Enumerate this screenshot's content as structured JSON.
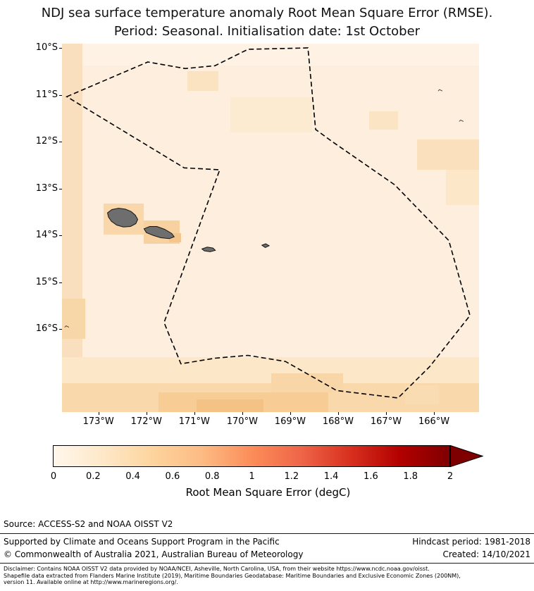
{
  "title": {
    "line1": "NDJ sea surface temperature anomaly Root Mean Square Error (RMSE).",
    "line2": "Period: Seasonal. Initialisation date: 1st October"
  },
  "chart_data": {
    "type": "heatmap",
    "title": "NDJ sea surface temperature anomaly Root Mean Square Error (RMSE). Period: Seasonal. Initialisation date: 1st October",
    "map": {
      "lon_range": [
        -173.76,
        -165.06
      ],
      "lat_range": [
        -9.91,
        -17.77
      ],
      "x_ticks": [
        {
          "lon": -173,
          "label": "173°W"
        },
        {
          "lon": -172,
          "label": "172°W"
        },
        {
          "lon": -171,
          "label": "171°W"
        },
        {
          "lon": -170,
          "label": "170°W"
        },
        {
          "lon": -169,
          "label": "169°W"
        },
        {
          "lon": -168,
          "label": "168°W"
        },
        {
          "lon": -167,
          "label": "167°W"
        },
        {
          "lon": -166,
          "label": "166°W"
        }
      ],
      "y_ticks": [
        {
          "lat": -10,
          "label": "10°S"
        },
        {
          "lat": -11,
          "label": "11°S"
        },
        {
          "lat": -12,
          "label": "12°S"
        },
        {
          "lat": -13,
          "label": "13°S"
        },
        {
          "lat": -14,
          "label": "14°S"
        },
        {
          "lat": -15,
          "label": "15°S"
        },
        {
          "lat": -16,
          "label": "16°S"
        }
      ],
      "base_value": 0.15,
      "base_color": "#fdeedd",
      "cells": [
        {
          "lon": [
            -173.76,
            -173.33
          ],
          "lat": [
            -9.91,
            -17.77
          ],
          "value": 0.3,
          "color": "#f9dfbd"
        },
        {
          "lon": [
            -173.33,
            -165.06
          ],
          "lat": [
            -9.91,
            -10.38
          ],
          "value": 0.1,
          "color": "#fdf2e3"
        },
        {
          "lon": [
            -171.15,
            -170.5
          ],
          "lat": [
            -10.5,
            -10.92
          ],
          "value": 0.3,
          "color": "#fbe2c0"
        },
        {
          "lon": [
            -170.25,
            -168.55
          ],
          "lat": [
            -11.05,
            -11.8
          ],
          "value": 0.2,
          "color": "#fcebd1"
        },
        {
          "lon": [
            -167.35,
            -166.75
          ],
          "lat": [
            -11.35,
            -11.75
          ],
          "value": 0.28,
          "color": "#fbe4c4"
        },
        {
          "lon": [
            -166.35,
            -165.06
          ],
          "lat": [
            -11.95,
            -12.6
          ],
          "value": 0.32,
          "color": "#fae0bd"
        },
        {
          "lon": [
            -165.75,
            -165.06
          ],
          "lat": [
            -12.6,
            -13.35
          ],
          "value": 0.22,
          "color": "#fce7c9"
        },
        {
          "lon": [
            -172.9,
            -172.05
          ],
          "lat": [
            -13.32,
            -13.98
          ],
          "value": 0.45,
          "color": "#f9d7aa"
        },
        {
          "lon": [
            -172.05,
            -171.3
          ],
          "lat": [
            -13.68,
            -14.18
          ],
          "value": 0.5,
          "color": "#f8d1a0"
        },
        {
          "lon": [
            -171.52,
            -171.28
          ],
          "lat": [
            -13.95,
            -14.15
          ],
          "value": 0.62,
          "color": "#f5c68b"
        },
        {
          "lon": [
            -173.76,
            -173.28
          ],
          "lat": [
            -15.35,
            -16.2
          ],
          "value": 0.47,
          "color": "#f7d6a8"
        },
        {
          "lon": [
            -173.76,
            -165.06
          ],
          "lat": [
            -16.6,
            -17.15
          ],
          "value": 0.22,
          "color": "#fce7c9"
        },
        {
          "lon": [
            -173.76,
            -165.06
          ],
          "lat": [
            -17.15,
            -17.77
          ],
          "value": 0.45,
          "color": "#f9d8ab"
        },
        {
          "lon": [
            -171.75,
            -168.2
          ],
          "lat": [
            -17.35,
            -17.77
          ],
          "value": 0.55,
          "color": "#f7cc95"
        },
        {
          "lon": [
            -170.95,
            -169.55
          ],
          "lat": [
            -17.5,
            -17.77
          ],
          "value": 0.62,
          "color": "#f5c285"
        },
        {
          "lon": [
            -169.4,
            -167.9
          ],
          "lat": [
            -16.95,
            -17.35
          ],
          "value": 0.46,
          "color": "#f9d6a8"
        },
        {
          "lon": [
            -166.6,
            -165.9
          ],
          "lat": [
            -17.2,
            -17.6
          ],
          "value": 0.4,
          "color": "#fadcb3"
        }
      ],
      "eez_boundary": [
        [
          -173.66,
          -11.04
        ],
        [
          -171.97,
          -10.3
        ],
        [
          -171.19,
          -10.44
        ],
        [
          -170.57,
          -10.38
        ],
        [
          -169.88,
          -10.03
        ],
        [
          -168.63,
          -10.0
        ],
        [
          -168.47,
          -11.74
        ],
        [
          -168.15,
          -11.98
        ],
        [
          -166.82,
          -12.92
        ],
        [
          -165.69,
          -14.11
        ],
        [
          -165.25,
          -15.71
        ],
        [
          -166.09,
          -16.8
        ],
        [
          -166.75,
          -17.47
        ],
        [
          -168.03,
          -17.31
        ],
        [
          -169.1,
          -16.69
        ],
        [
          -169.88,
          -16.56
        ],
        [
          -170.57,
          -16.62
        ],
        [
          -171.28,
          -16.74
        ],
        [
          -171.63,
          -15.86
        ],
        [
          -170.47,
          -12.6
        ],
        [
          -171.21,
          -12.56
        ]
      ],
      "islands": [
        {
          "name": "savaii",
          "points": [
            [
              -172.81,
              -13.52
            ],
            [
              -172.72,
              -13.45
            ],
            [
              -172.58,
              -13.42
            ],
            [
              -172.44,
              -13.44
            ],
            [
              -172.32,
              -13.49
            ],
            [
              -172.23,
              -13.57
            ],
            [
              -172.18,
              -13.66
            ],
            [
              -172.22,
              -13.75
            ],
            [
              -172.33,
              -13.81
            ],
            [
              -172.48,
              -13.82
            ],
            [
              -172.62,
              -13.78
            ],
            [
              -172.73,
              -13.7
            ],
            [
              -172.79,
              -13.61
            ]
          ]
        },
        {
          "name": "upolu",
          "points": [
            [
              -172.05,
              -13.86
            ],
            [
              -171.93,
              -13.81
            ],
            [
              -171.78,
              -13.81
            ],
            [
              -171.62,
              -13.87
            ],
            [
              -171.47,
              -13.96
            ],
            [
              -171.42,
              -14.03
            ],
            [
              -171.52,
              -14.07
            ],
            [
              -171.7,
              -14.05
            ],
            [
              -171.86,
              -14.0
            ],
            [
              -172.0,
              -13.94
            ]
          ]
        },
        {
          "name": "tutuila",
          "points": [
            [
              -170.84,
              -14.29
            ],
            [
              -170.73,
              -14.25
            ],
            [
              -170.61,
              -14.27
            ],
            [
              -170.56,
              -14.32
            ],
            [
              -170.67,
              -14.35
            ],
            [
              -170.79,
              -14.33
            ]
          ]
        },
        {
          "name": "manua",
          "points": [
            [
              -169.59,
              -14.21
            ],
            [
              -169.51,
              -14.18
            ],
            [
              -169.44,
              -14.22
            ],
            [
              -169.52,
              -14.26
            ]
          ]
        }
      ],
      "islets": [
        [
          -165.87,
          -10.92
        ],
        [
          -165.43,
          -11.57
        ],
        [
          -173.66,
          -15.96
        ]
      ]
    },
    "colorbar": {
      "label": "Root Mean Square Error (degC)",
      "range": [
        0,
        2
      ],
      "ticks": [
        0,
        0.2,
        0.4,
        0.6,
        0.8,
        1,
        1.2,
        1.4,
        1.6,
        1.8,
        2
      ],
      "tick_labels": [
        "0",
        "0.2",
        "0.4",
        "0.6",
        "0.8",
        "1",
        "1.2",
        "1.4",
        "1.6",
        "1.8",
        "2"
      ],
      "extend_max": true,
      "extend_color": "#7f0000",
      "gradient_stops": [
        "#fff7ec",
        "#fee8c8",
        "#fdd49e",
        "#fdbb84",
        "#fc8d59",
        "#ef6548",
        "#d7301f",
        "#b30000",
        "#7f0000"
      ]
    }
  },
  "footer": {
    "source": "Source: ACCESS-S2 and NOAA OISST V2",
    "supported_by": "Supported by Climate and Oceans Support Program in the Pacific",
    "copyright": "© Commonwealth of Australia 2021, Australian Bureau of Meteorology",
    "hindcast_period": "Hindcast period: 1981-2018",
    "created": "Created: 14/10/2021"
  },
  "disclaimer": {
    "line1": "Disclaimer: Contains NOAA OISST V2 data provided by NOAA/NCEI, Asheville, North Carolina, USA, from their website https://www.ncdc.noaa.gov/oisst.",
    "line2": "Shapefile data extracted from Flanders Marine Institute (2019), Maritime Boundaries Geodatabase: Maritime Boundaries and Exclusive Economic Zones (200NM),",
    "line3": "version 11. Available online at http://www.marineregions.org/."
  }
}
